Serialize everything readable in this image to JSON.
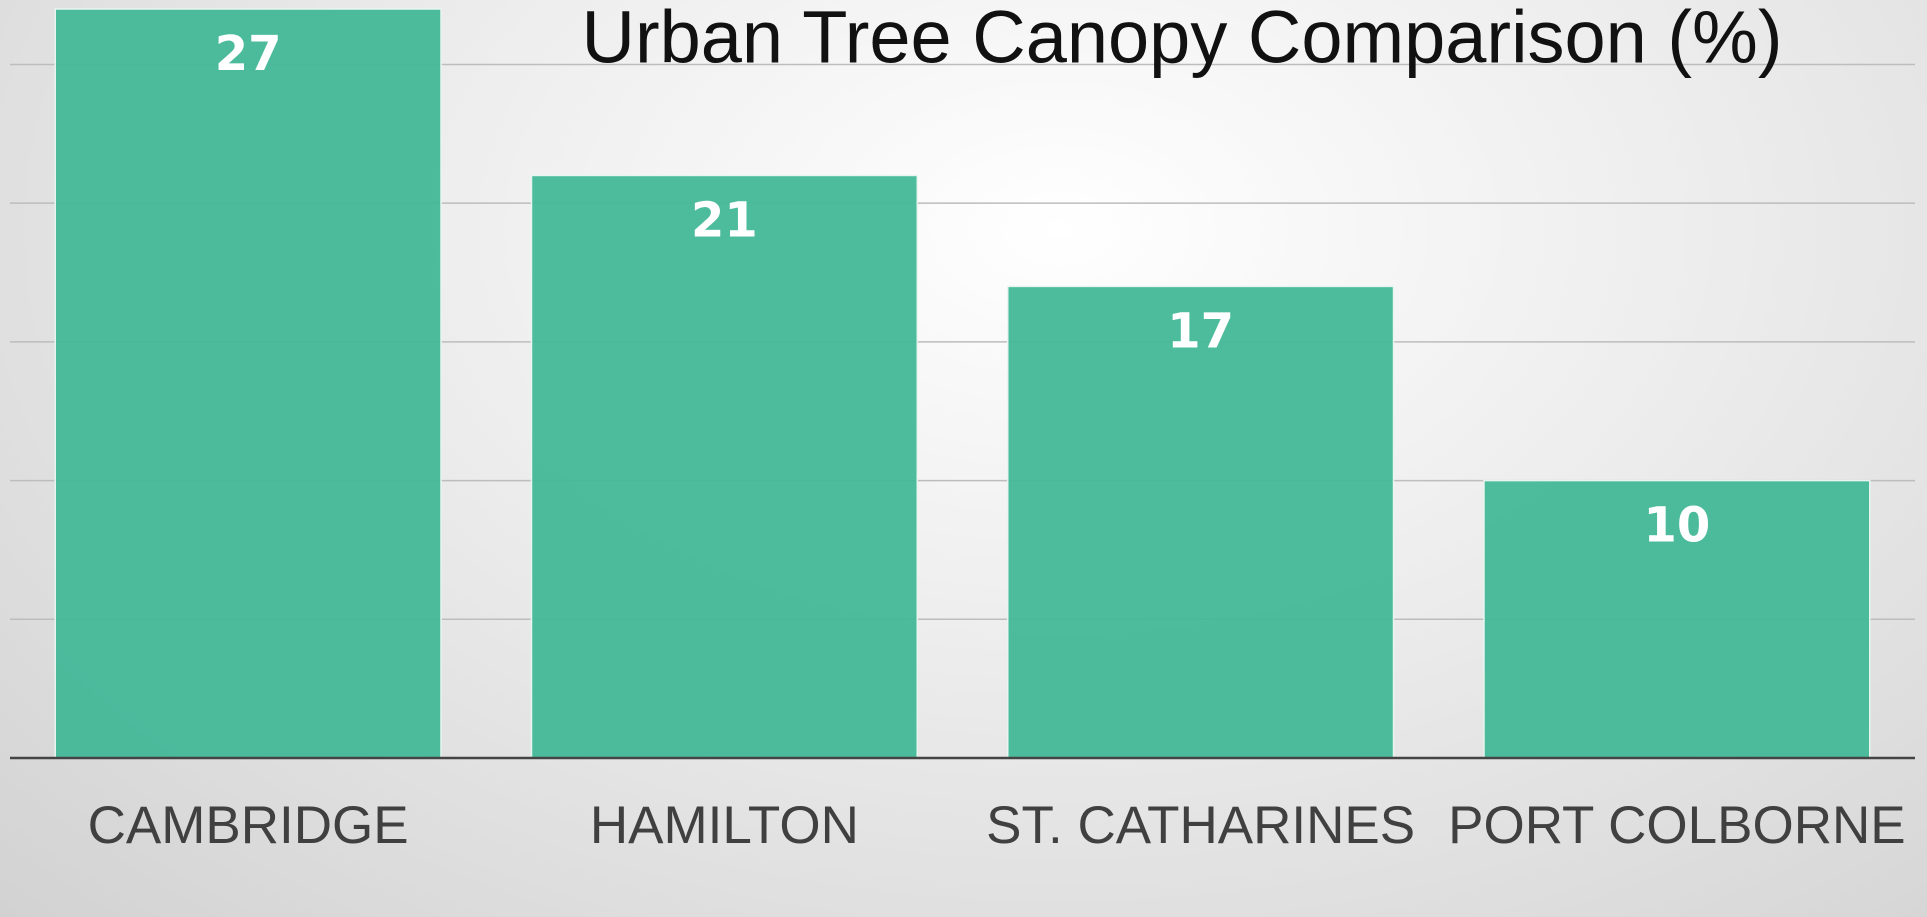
{
  "chart_data": {
    "type": "bar",
    "title": "Urban Tree Canopy Comparison (%)",
    "categories": [
      "CAMBRIDGE",
      "HAMILTON",
      "ST. CATHARINES",
      "PORT COLBORNE"
    ],
    "values": [
      27,
      21,
      17,
      10
    ],
    "color": "#43b898",
    "ylim": [
      0,
      27
    ],
    "yticks": [
      0,
      5,
      10,
      15,
      20,
      25
    ],
    "grid": true
  }
}
